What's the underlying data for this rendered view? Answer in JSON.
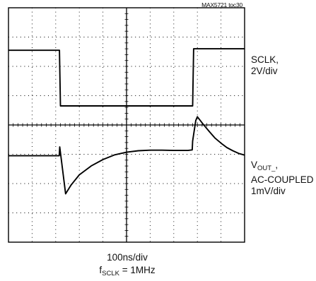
{
  "figure_id": "MAX5721 toc30",
  "traces": {
    "sclk": {
      "label_line1": "SCLK,",
      "label_line2": "2V/div"
    },
    "vout": {
      "label_name": "V",
      "label_sub": "OUT_",
      "label_suffix": ",",
      "label_line2": "AC-COUPLED",
      "label_line3": "1mV/div"
    }
  },
  "footer": {
    "timebase": "100ns/div",
    "freq_prefix": "f",
    "freq_sub": "SCLK",
    "freq_value": " = 1MHz"
  },
  "chart_data": {
    "type": "line",
    "title": "",
    "xlabel": "100ns/div",
    "grid": true,
    "x_divisions": 10,
    "y_divisions": 8,
    "x_unit": "ns",
    "series": [
      {
        "name": "SCLK",
        "scale": "2V/div",
        "color": "#000000",
        "points": [
          [
            0,
            2.55
          ],
          [
            216,
            2.55
          ],
          [
            220,
            0.65
          ],
          [
            780,
            0.65
          ],
          [
            784,
            2.6
          ],
          [
            1000,
            2.6
          ]
        ]
      },
      {
        "name": "VOUT_",
        "scale": "1mV/div",
        "color": "#000000",
        "points": [
          [
            0,
            -1.05
          ],
          [
            215,
            -1.05
          ],
          [
            217,
            -0.75
          ],
          [
            242,
            -2.35
          ],
          [
            265,
            -2.05
          ],
          [
            300,
            -1.7
          ],
          [
            350,
            -1.4
          ],
          [
            400,
            -1.18
          ],
          [
            450,
            -1.02
          ],
          [
            500,
            -0.93
          ],
          [
            550,
            -0.88
          ],
          [
            600,
            -0.86
          ],
          [
            650,
            -0.86
          ],
          [
            700,
            -0.87
          ],
          [
            760,
            -0.87
          ],
          [
            778,
            -0.85
          ],
          [
            780,
            -0.55
          ],
          [
            793,
            0.15
          ],
          [
            800,
            0.28
          ],
          [
            825,
            0.02
          ],
          [
            850,
            -0.22
          ],
          [
            875,
            -0.45
          ],
          [
            900,
            -0.62
          ],
          [
            925,
            -0.77
          ],
          [
            950,
            -0.88
          ],
          [
            975,
            -0.97
          ],
          [
            1000,
            -1.03
          ]
        ]
      }
    ]
  }
}
